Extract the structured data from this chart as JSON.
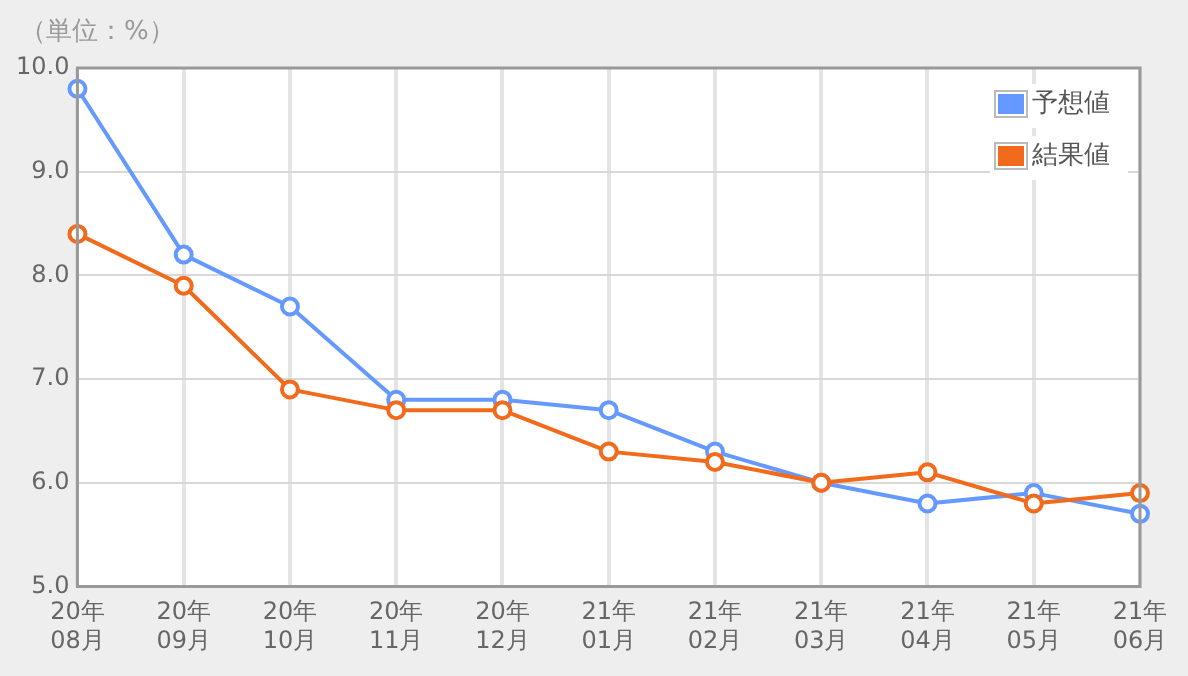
{
  "chart_data": {
    "type": "line",
    "ylabel": "（単位：%）",
    "categories": [
      "20年\n08月",
      "20年\n09月",
      "20年\n10月",
      "20年\n11月",
      "20年\n12月",
      "21年\n01月",
      "21年\n02月",
      "21年\n03月",
      "21年\n04月",
      "21年\n05月",
      "21年\n06月"
    ],
    "series": [
      {
        "name": "予想値",
        "color": "#6699ff",
        "values": [
          9.8,
          8.2,
          7.7,
          6.8,
          6.8,
          6.7,
          6.3,
          6.0,
          5.8,
          5.9,
          5.7
        ]
      },
      {
        "name": "結果値",
        "color": "#f26a1b",
        "values": [
          8.4,
          7.9,
          6.9,
          6.7,
          6.7,
          6.3,
          6.2,
          6.0,
          6.1,
          5.8,
          5.9
        ]
      }
    ],
    "ylim": [
      5.0,
      10.0
    ],
    "yticks": [
      {
        "value": 5,
        "label": "5.0"
      },
      {
        "value": 6,
        "label": "6.0"
      },
      {
        "value": 7,
        "label": "7.0"
      },
      {
        "value": 8,
        "label": "8.0"
      },
      {
        "value": 9,
        "label": "9.0"
      },
      {
        "value": 10,
        "label": "10.0"
      }
    ],
    "grid": true,
    "legend": "top right",
    "marker": "circle",
    "line_style": "solid"
  }
}
